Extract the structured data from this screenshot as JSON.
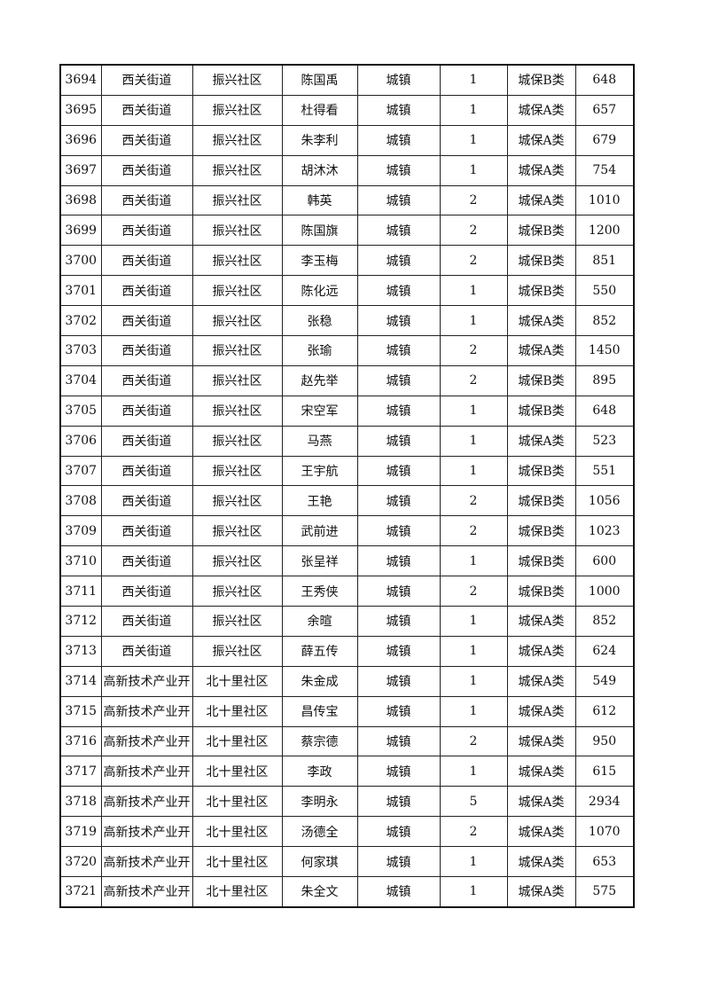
{
  "table": {
    "rows": [
      [
        "3694",
        "西关街道",
        "振兴社区",
        "陈国禹",
        "城镇",
        "1",
        "城保B类",
        "648"
      ],
      [
        "3695",
        "西关街道",
        "振兴社区",
        "杜得看",
        "城镇",
        "1",
        "城保A类",
        "657"
      ],
      [
        "3696",
        "西关街道",
        "振兴社区",
        "朱李利",
        "城镇",
        "1",
        "城保A类",
        "679"
      ],
      [
        "3697",
        "西关街道",
        "振兴社区",
        "胡沐沐",
        "城镇",
        "1",
        "城保A类",
        "754"
      ],
      [
        "3698",
        "西关街道",
        "振兴社区",
        "韩英",
        "城镇",
        "2",
        "城保A类",
        "1010"
      ],
      [
        "3699",
        "西关街道",
        "振兴社区",
        "陈国旗",
        "城镇",
        "2",
        "城保B类",
        "1200"
      ],
      [
        "3700",
        "西关街道",
        "振兴社区",
        "李玉梅",
        "城镇",
        "2",
        "城保B类",
        "851"
      ],
      [
        "3701",
        "西关街道",
        "振兴社区",
        "陈化远",
        "城镇",
        "1",
        "城保B类",
        "550"
      ],
      [
        "3702",
        "西关街道",
        "振兴社区",
        "张稳",
        "城镇",
        "1",
        "城保A类",
        "852"
      ],
      [
        "3703",
        "西关街道",
        "振兴社区",
        "张瑜",
        "城镇",
        "2",
        "城保A类",
        "1450"
      ],
      [
        "3704",
        "西关街道",
        "振兴社区",
        "赵先举",
        "城镇",
        "2",
        "城保B类",
        "895"
      ],
      [
        "3705",
        "西关街道",
        "振兴社区",
        "宋空军",
        "城镇",
        "1",
        "城保B类",
        "648"
      ],
      [
        "3706",
        "西关街道",
        "振兴社区",
        "马燕",
        "城镇",
        "1",
        "城保A类",
        "523"
      ],
      [
        "3707",
        "西关街道",
        "振兴社区",
        "王宇航",
        "城镇",
        "1",
        "城保B类",
        "551"
      ],
      [
        "3708",
        "西关街道",
        "振兴社区",
        "王艳",
        "城镇",
        "2",
        "城保B类",
        "1056"
      ],
      [
        "3709",
        "西关街道",
        "振兴社区",
        "武前进",
        "城镇",
        "2",
        "城保B类",
        "1023"
      ],
      [
        "3710",
        "西关街道",
        "振兴社区",
        "张呈祥",
        "城镇",
        "1",
        "城保B类",
        "600"
      ],
      [
        "3711",
        "西关街道",
        "振兴社区",
        "王秀侠",
        "城镇",
        "2",
        "城保B类",
        "1000"
      ],
      [
        "3712",
        "西关街道",
        "振兴社区",
        "余暄",
        "城镇",
        "1",
        "城保A类",
        "852"
      ],
      [
        "3713",
        "西关街道",
        "振兴社区",
        "薛五传",
        "城镇",
        "1",
        "城保A类",
        "624"
      ],
      [
        "3714",
        "高新技术产业开",
        "北十里社区",
        "朱金成",
        "城镇",
        "1",
        "城保A类",
        "549"
      ],
      [
        "3715",
        "高新技术产业开",
        "北十里社区",
        "昌传宝",
        "城镇",
        "1",
        "城保A类",
        "612"
      ],
      [
        "3716",
        "高新技术产业开",
        "北十里社区",
        "蔡宗德",
        "城镇",
        "2",
        "城保A类",
        "950"
      ],
      [
        "3717",
        "高新技术产业开",
        "北十里社区",
        "李政",
        "城镇",
        "1",
        "城保A类",
        "615"
      ],
      [
        "3718",
        "高新技术产业开",
        "北十里社区",
        "李明永",
        "城镇",
        "5",
        "城保A类",
        "2934"
      ],
      [
        "3719",
        "高新技术产业开",
        "北十里社区",
        "汤德全",
        "城镇",
        "2",
        "城保A类",
        "1070"
      ],
      [
        "3720",
        "高新技术产业开",
        "北十里社区",
        "何家琪",
        "城镇",
        "1",
        "城保A类",
        "653"
      ],
      [
        "3721",
        "高新技术产业开",
        "北十里社区",
        "朱全文",
        "城镇",
        "1",
        "城保A类",
        "575"
      ]
    ]
  }
}
